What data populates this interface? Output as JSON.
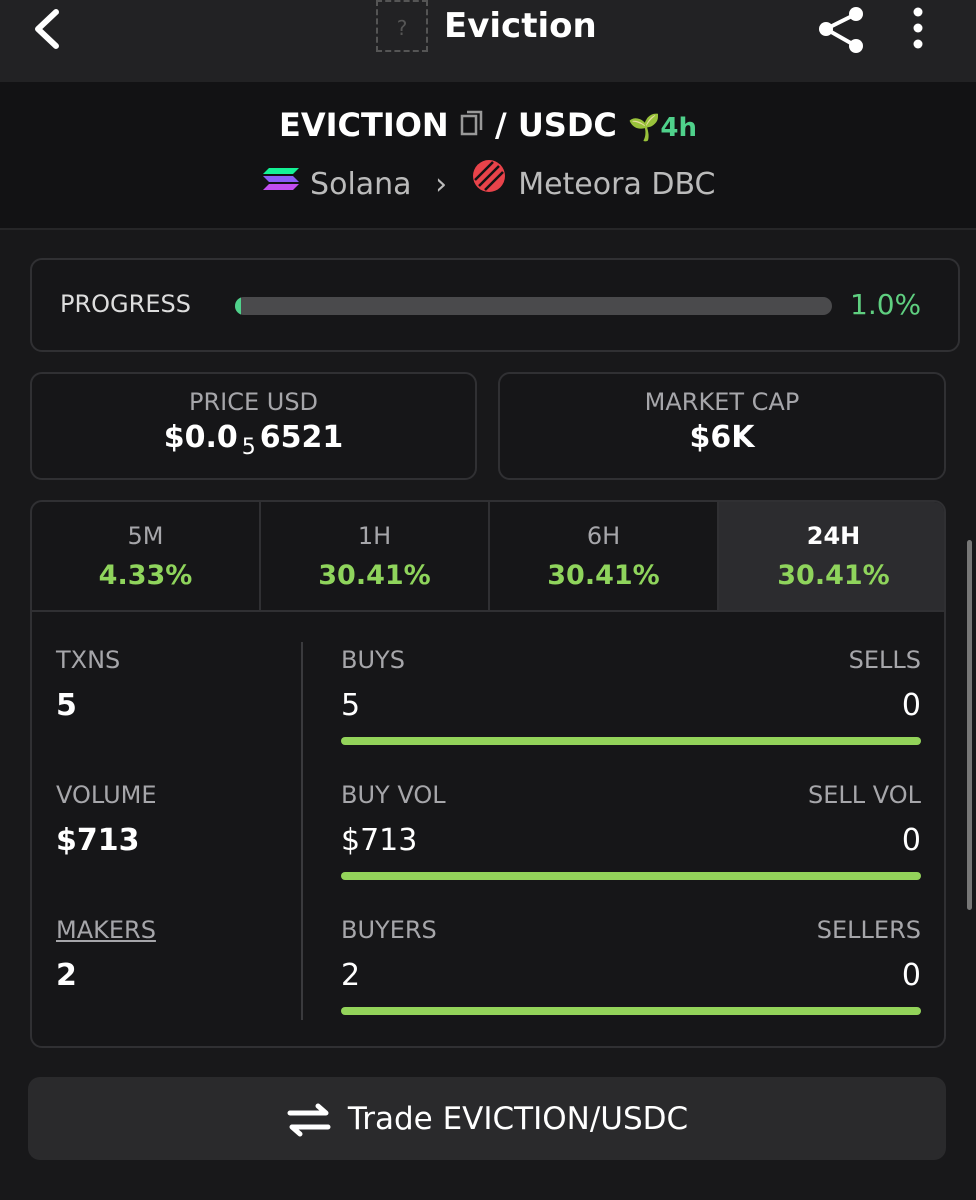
{
  "header": {
    "title": "Eviction",
    "icon_placeholder": "?"
  },
  "pair": {
    "base": "EVICTION",
    "separator": "/",
    "quote": "USDC",
    "age": "4h",
    "chain": "Solana",
    "dex": "Meteora DBC"
  },
  "progress": {
    "label": "PROGRESS",
    "percent": 1.0,
    "value_label": "1.0%"
  },
  "price": {
    "label": "PRICE USD",
    "prefix": "$0.0",
    "subscript": "5",
    "digits": "6521"
  },
  "market_cap": {
    "label": "MARKET CAP",
    "value": "$6K"
  },
  "timeframes": [
    {
      "label": "5M",
      "change": "4.33%",
      "selected": false
    },
    {
      "label": "1H",
      "change": "30.41%",
      "selected": false
    },
    {
      "label": "6H",
      "change": "30.41%",
      "selected": false
    },
    {
      "label": "24H",
      "change": "30.41%",
      "selected": true
    }
  ],
  "stats": [
    {
      "label": "TXNS",
      "value": "5",
      "left_label": "BUYS",
      "left_value": "5",
      "right_label": "SELLS",
      "right_value": "0"
    },
    {
      "label": "VOLUME",
      "value": "$713",
      "left_label": "BUY VOL",
      "left_value": "$713",
      "right_label": "SELL VOL",
      "right_value": "0"
    },
    {
      "label": "MAKERS",
      "value": "2",
      "left_label": "BUYERS",
      "left_value": "2",
      "right_label": "SELLERS",
      "right_value": "0"
    }
  ],
  "trade_button": "Trade EVICTION/USDC"
}
